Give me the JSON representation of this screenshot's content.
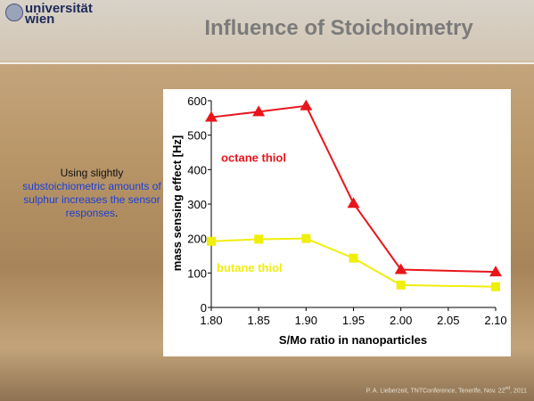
{
  "logo": {
    "lines": [
      "universität",
      "wien"
    ]
  },
  "slide_title": "Influence of Stoichoimetry",
  "side_text": {
    "intro": "Using slightly",
    "highlight": "substoichiometric amounts of sulphur increases the sensor responses",
    "end": "."
  },
  "footer": {
    "main": "P. A. Lieberzeit, TNTConference, Tenerife, Nov. 22",
    "sup": "nd",
    "tail": ", 2011"
  },
  "chart_data": {
    "type": "line",
    "x_label": "S/Mo ratio in nanoparticles",
    "y_label": "mass sensing effect [Hz]",
    "x": [
      1.8,
      1.85,
      1.9,
      1.95,
      2.0,
      2.1
    ],
    "series": [
      {
        "name": "octane thiol",
        "color": "#e8151b",
        "marker": "triangle",
        "values": [
          552,
          568,
          585,
          302,
          110,
          103
        ]
      },
      {
        "name": "butane thiol",
        "color": "#f0ee0c",
        "marker": "square",
        "values": [
          192,
          198,
          200,
          143,
          65,
          60
        ]
      }
    ],
    "xlim": [
      1.8,
      2.1
    ],
    "xticks": [
      {
        "value": 1.8,
        "label": "1.80"
      },
      {
        "value": 1.85,
        "label": "1.85"
      },
      {
        "value": 1.9,
        "label": "1.90"
      },
      {
        "value": 1.95,
        "label": "1.95"
      },
      {
        "value": 2.0,
        "label": "2.00"
      },
      {
        "value": 2.05,
        "label": "2.05"
      },
      {
        "value": 2.1,
        "label": "2.10"
      }
    ],
    "ylim": [
      0,
      600
    ],
    "yticks": [
      0,
      100,
      200,
      300,
      400,
      500,
      600
    ],
    "grid": false
  }
}
